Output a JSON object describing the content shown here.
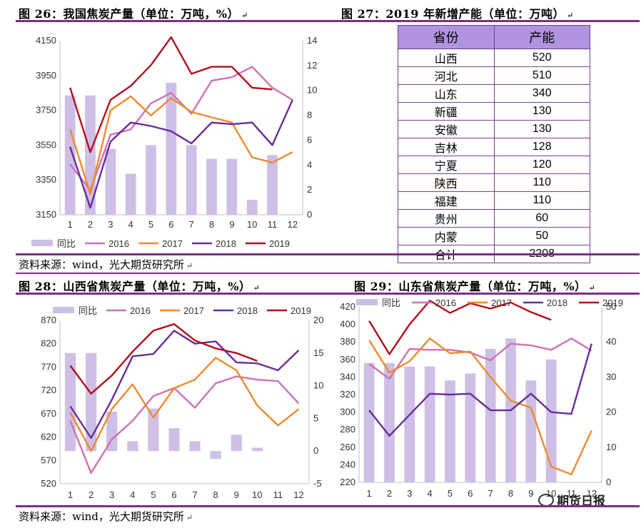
{
  "colors": {
    "bar": "#cdbfe6",
    "2016": "#d070b8",
    "2017": "#ef8a2e",
    "2018": "#6a2c9a",
    "2019": "#b0101a",
    "rule": "#7b2f86"
  },
  "fig26": {
    "title": "图 26：我国焦炭产量（单位：万吨，%）",
    "source": "资料来源：wind，光大期货研究所",
    "chart_data": {
      "type": "line",
      "categories": [
        "1",
        "2",
        "3",
        "4",
        "5",
        "6",
        "7",
        "8",
        "9",
        "10",
        "11",
        "12"
      ],
      "ylim": [
        3150,
        4150
      ],
      "yticks": [
        "3150",
        "3350",
        "3550",
        "3750",
        "3950",
        "4150"
      ],
      "y2lim": [
        0,
        14
      ],
      "y2ticks": [
        "0",
        "2",
        "4",
        "6",
        "8",
        "10",
        "12",
        "14"
      ],
      "bars": {
        "name": "同比",
        "values": [
          9.6,
          9.6,
          5.3,
          3.3,
          5.6,
          10.6,
          5.6,
          4.5,
          4.5,
          1.2,
          4.8,
          null
        ]
      },
      "series": [
        {
          "name": "2016",
          "values": [
            3440,
            3290,
            3610,
            3640,
            3790,
            3850,
            3730,
            3920,
            3940,
            4000,
            3880,
            3810
          ]
        },
        {
          "name": "2017",
          "values": [
            3640,
            3270,
            3750,
            3830,
            3720,
            3820,
            3740,
            3710,
            3680,
            3480,
            3450,
            3510
          ]
        },
        {
          "name": "2018",
          "values": [
            3540,
            3190,
            3570,
            3680,
            3660,
            3630,
            3560,
            3680,
            3670,
            3680,
            3550,
            3810
          ]
        },
        {
          "name": "2019",
          "values": [
            3880,
            3510,
            3810,
            3890,
            4010,
            4170,
            3960,
            4000,
            4000,
            3880,
            3870,
            null
          ]
        }
      ]
    }
  },
  "fig27": {
    "title": "图 27：2019 年新增产能（单位：万吨）",
    "headers": [
      "省份",
      "产能"
    ],
    "rows": [
      [
        "山西",
        "520"
      ],
      [
        "河北",
        "510"
      ],
      [
        "山东",
        "340"
      ],
      [
        "新疆",
        "130"
      ],
      [
        "安徽",
        "130"
      ],
      [
        "吉林",
        "128"
      ],
      [
        "宁夏",
        "120"
      ],
      [
        "陕西",
        "110"
      ],
      [
        "福建",
        "110"
      ],
      [
        "贵州",
        "60"
      ],
      [
        "内蒙",
        "50"
      ],
      [
        "合计",
        "2208"
      ]
    ]
  },
  "fig28": {
    "title": "图 28：山西省焦炭产量（单位：万吨，%）",
    "source": "资料来源：wind，光大期货研究所",
    "chart_data": {
      "type": "line",
      "categories": [
        "1",
        "2",
        "3",
        "4",
        "5",
        "6",
        "7",
        "8",
        "9",
        "10",
        "11",
        "12"
      ],
      "ylim": [
        520,
        870
      ],
      "yticks": [
        "520",
        "570",
        "620",
        "670",
        "720",
        "770",
        "820",
        "870"
      ],
      "y2lim": [
        -5,
        20
      ],
      "y2ticks": [
        "-5",
        "0",
        "5",
        "10",
        "15",
        "20"
      ],
      "bars": {
        "name": "同比",
        "values": [
          15,
          15,
          6,
          1.5,
          6.5,
          3.5,
          1.5,
          -1.2,
          2.5,
          0.5,
          null,
          null
        ]
      },
      "series": [
        {
          "name": "2016",
          "values": [
            655,
            543,
            615,
            655,
            708,
            725,
            683,
            735,
            750,
            743,
            740,
            692
          ]
        },
        {
          "name": "2017",
          "values": [
            673,
            590,
            680,
            733,
            662,
            725,
            743,
            790,
            763,
            688,
            645,
            680
          ]
        },
        {
          "name": "2018",
          "values": [
            686,
            618,
            700,
            793,
            798,
            848,
            820,
            825,
            780,
            778,
            763,
            806
          ]
        },
        {
          "name": "2019",
          "values": [
            773,
            713,
            752,
            803,
            848,
            862,
            827,
            810,
            800,
            783,
            null,
            null
          ]
        }
      ]
    }
  },
  "fig29": {
    "title": "图 29：山东省焦炭产量（单位：万吨，%）",
    "watermark": "期货日报",
    "chart_data": {
      "type": "line",
      "categories": [
        "1",
        "2",
        "3",
        "4",
        "5",
        "6",
        "7",
        "8",
        "9",
        "10",
        "11",
        "12"
      ],
      "ylim": [
        220,
        420
      ],
      "yticks": [
        "220",
        "240",
        "260",
        "280",
        "300",
        "320",
        "340",
        "360",
        "380",
        "400",
        "420"
      ],
      "y2lim": [
        0,
        50
      ],
      "y2ticks": [
        "0",
        "10",
        "20",
        "30",
        "40",
        "50"
      ],
      "bars": {
        "name": "同比",
        "values": [
          34,
          34,
          33,
          33,
          29,
          31,
          38,
          41,
          29,
          35,
          null,
          null
        ]
      },
      "series": [
        {
          "name": "2016",
          "values": [
            355,
            338,
            372,
            371,
            371,
            368,
            359,
            378,
            376,
            371,
            384,
            370
          ]
        },
        {
          "name": "2017",
          "values": [
            382,
            345,
            358,
            384,
            367,
            369,
            340,
            313,
            305,
            238,
            229,
            279
          ]
        },
        {
          "name": "2018",
          "values": [
            302,
            273,
            297,
            321,
            320,
            321,
            302,
            302,
            321,
            300,
            298,
            378
          ]
        },
        {
          "name": "2019",
          "values": [
            404,
            366,
            400,
            427,
            413,
            424,
            418,
            425,
            414,
            405,
            null,
            null
          ]
        }
      ]
    }
  },
  "legend": {
    "bar": "同比",
    "s2016": "2016",
    "s2017": "2017",
    "s2018": "2018",
    "s2019": "2019"
  }
}
